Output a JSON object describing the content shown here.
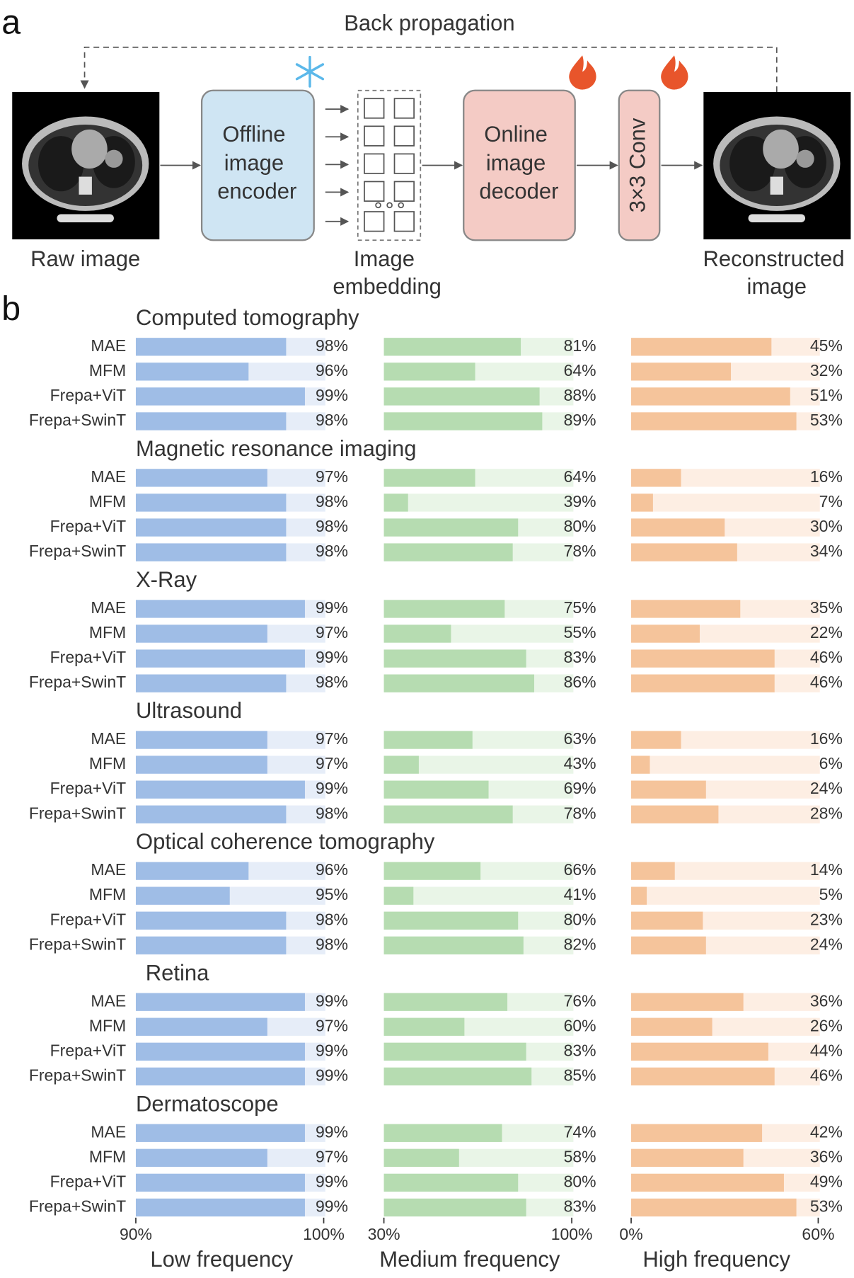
{
  "diagram": {
    "panel_label": "a",
    "loop_label": "Back propagation",
    "raw_label": "Raw image",
    "encoder_lines": [
      "Offline",
      "image",
      "encoder"
    ],
    "embedding_lines": [
      "Image",
      "embedding"
    ],
    "decoder_lines": [
      "Online",
      "image",
      "decoder"
    ],
    "conv_label": "3×3 Conv",
    "recon_lines": [
      "Reconstructed",
      "image"
    ]
  },
  "chart_data": {
    "type": "bar",
    "orientation": "horizontal",
    "panel_label": "b",
    "panels": [
      {
        "xlabel": "Low frequency",
        "xlim": [
          90,
          100
        ],
        "xticks": [
          {
            "value": 90,
            "label": "90%"
          },
          {
            "value": 100,
            "label": "100%"
          }
        ],
        "color": "#9fbde6",
        "track_color": "#e6edf8"
      },
      {
        "xlabel": "Medium frequency",
        "xlim": [
          30,
          100
        ],
        "xticks": [
          {
            "value": 30,
            "label": "30%"
          },
          {
            "value": 100,
            "label": "100%"
          }
        ],
        "color": "#b6dcb1",
        "track_color": "#e9f5e7"
      },
      {
        "xlabel": "High frequency",
        "xlim": [
          0,
          60
        ],
        "xticks": [
          {
            "value": 0,
            "label": "0%"
          },
          {
            "value": 60,
            "label": "60%"
          }
        ],
        "color": "#f5c49b",
        "track_color": "#fdeee3"
      }
    ],
    "groups": [
      {
        "title": "Computed tomography",
        "categories": [
          "MAE",
          "MFM",
          "Frepa+ViT",
          "Frepa+SwinT"
        ],
        "values": [
          [
            98,
            96,
            99,
            98
          ],
          [
            81,
            64,
            88,
            89
          ],
          [
            45,
            32,
            51,
            53
          ]
        ],
        "value_labels": [
          [
            "98%",
            "96%",
            "99%",
            "98%"
          ],
          [
            "81%",
            "64%",
            "88%",
            "89%"
          ],
          [
            "45%",
            "32%",
            "51%",
            "53%"
          ]
        ]
      },
      {
        "title": "Magnetic resonance imaging",
        "categories": [
          "MAE",
          "MFM",
          "Frepa+ViT",
          "Frepa+SwinT"
        ],
        "values": [
          [
            97,
            98,
            98,
            98
          ],
          [
            64,
            39,
            80,
            78
          ],
          [
            16,
            7,
            30,
            34
          ]
        ],
        "value_labels": [
          [
            "97%",
            "98%",
            "98%",
            "98%"
          ],
          [
            "64%",
            "39%",
            "80%",
            "78%"
          ],
          [
            "16%",
            "7%",
            "30%",
            "34%"
          ]
        ]
      },
      {
        "title": "X-Ray",
        "categories": [
          "MAE",
          "MFM",
          "Frepa+ViT",
          "Frepa+SwinT"
        ],
        "values": [
          [
            99,
            97,
            99,
            98
          ],
          [
            75,
            55,
            83,
            86
          ],
          [
            35,
            22,
            46,
            46
          ]
        ],
        "value_labels": [
          [
            "99%",
            "97%",
            "99%",
            "98%"
          ],
          [
            "75%",
            "55%",
            "83%",
            "86%"
          ],
          [
            "35%",
            "22%",
            "46%",
            "46%"
          ]
        ]
      },
      {
        "title": "Ultrasound",
        "categories": [
          "MAE",
          "MFM",
          "Frepa+ViT",
          "Frepa+SwinT"
        ],
        "values": [
          [
            97,
            97,
            99,
            98
          ],
          [
            63,
            43,
            69,
            78
          ],
          [
            16,
            6,
            24,
            28
          ]
        ],
        "value_labels": [
          [
            "97%",
            "97%",
            "99%",
            "98%"
          ],
          [
            "63%",
            "43%",
            "69%",
            "78%"
          ],
          [
            "16%",
            "6%",
            "24%",
            "28%"
          ]
        ]
      },
      {
        "title": "Optical coherence tomography",
        "categories": [
          "MAE",
          "MFM",
          "Frepa+ViT",
          "Frepa+SwinT"
        ],
        "values": [
          [
            96,
            95,
            98,
            98
          ],
          [
            66,
            41,
            80,
            82
          ],
          [
            14,
            5,
            23,
            24
          ]
        ],
        "value_labels": [
          [
            "96%",
            "95%",
            "98%",
            "98%"
          ],
          [
            "66%",
            "41%",
            "80%",
            "82%"
          ],
          [
            "14%",
            "5%",
            "23%",
            "24%"
          ]
        ]
      },
      {
        "title": "Retina",
        "categories": [
          "MAE",
          "MFM",
          "Frepa+ViT",
          "Frepa+SwinT"
        ],
        "values": [
          [
            99,
            97,
            99,
            99
          ],
          [
            76,
            60,
            83,
            85
          ],
          [
            36,
            26,
            44,
            46
          ]
        ],
        "value_labels": [
          [
            "99%",
            "97%",
            "99%",
            "99%"
          ],
          [
            "76%",
            "60%",
            "83%",
            "85%"
          ],
          [
            "36%",
            "26%",
            "44%",
            "46%"
          ]
        ]
      },
      {
        "title": "Dermatoscope",
        "categories": [
          "MAE",
          "MFM",
          "Frepa+ViT",
          "Frepa+SwinT"
        ],
        "values": [
          [
            99,
            97,
            99,
            99
          ],
          [
            74,
            58,
            80,
            83
          ],
          [
            42,
            36,
            49,
            53
          ]
        ],
        "value_labels": [
          [
            "99%",
            "97%",
            "99%",
            "99%"
          ],
          [
            "74%",
            "58%",
            "80%",
            "83%"
          ],
          [
            "42%",
            "36%",
            "49%",
            "53%"
          ]
        ]
      }
    ]
  }
}
